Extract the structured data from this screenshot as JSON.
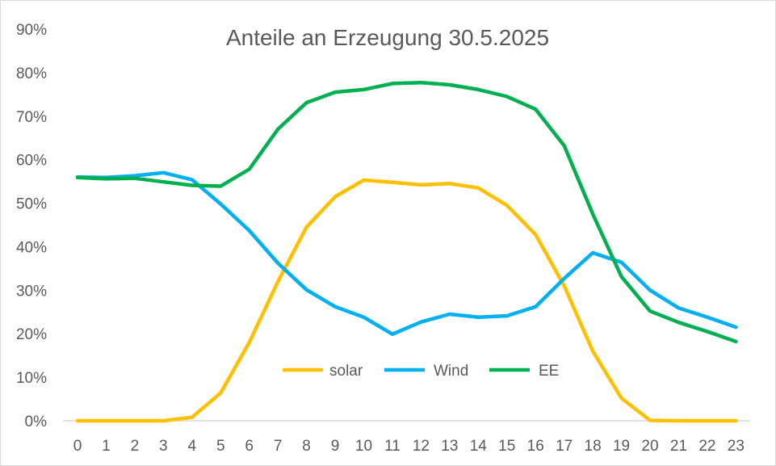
{
  "chart_data": {
    "type": "line",
    "title": "Anteile an Erzeugung 30.5.2025",
    "xlabel": "",
    "ylabel": "",
    "x": [
      0,
      1,
      2,
      3,
      4,
      5,
      6,
      7,
      8,
      9,
      10,
      11,
      12,
      13,
      14,
      15,
      16,
      17,
      18,
      19,
      20,
      21,
      22,
      23
    ],
    "x_tick_labels": [
      "0",
      "1",
      "2",
      "3",
      "4",
      "5",
      "6",
      "7",
      "8",
      "9",
      "10",
      "11",
      "12",
      "13",
      "14",
      "15",
      "16",
      "17",
      "18",
      "19",
      "20",
      "21",
      "22",
      "23"
    ],
    "ylim": [
      0,
      90
    ],
    "y_ticks": [
      0,
      10,
      20,
      30,
      40,
      50,
      60,
      70,
      80,
      90
    ],
    "y_tick_labels": [
      "0%",
      "10%",
      "20%",
      "30%",
      "40%",
      "50%",
      "60%",
      "70%",
      "80%",
      "90%"
    ],
    "grid": false,
    "legend_position": "inside-bottom-center",
    "series": [
      {
        "name": "solar",
        "color": "#FFC000",
        "values": [
          0,
          0,
          0,
          0,
          0.8,
          6.4,
          18,
          32,
          44.5,
          51.5,
          55.3,
          54.8,
          54.2,
          54.5,
          53.5,
          49.5,
          42.8,
          31,
          16,
          5.2,
          0.1,
          0,
          0,
          0
        ]
      },
      {
        "name": "Wind",
        "color": "#00B0F0",
        "values": [
          56,
          55.9,
          56.3,
          57,
          55.4,
          49.8,
          43.7,
          36.2,
          30.1,
          26.2,
          23.8,
          19.9,
          22.7,
          24.5,
          23.8,
          24.1,
          26.2,
          32.7,
          38.6,
          36.4,
          30,
          25.9,
          23.8,
          21.5
        ]
      },
      {
        "name": "EE",
        "color": "#00B050",
        "values": [
          55.9,
          55.6,
          55.7,
          54.9,
          54.1,
          53.9,
          57.8,
          67,
          73.1,
          75.5,
          76.1,
          77.5,
          77.7,
          77.2,
          76.1,
          74.5,
          71.6,
          63.2,
          47.5,
          33.1,
          25.2,
          22.6,
          20.5,
          18.2
        ]
      }
    ]
  }
}
